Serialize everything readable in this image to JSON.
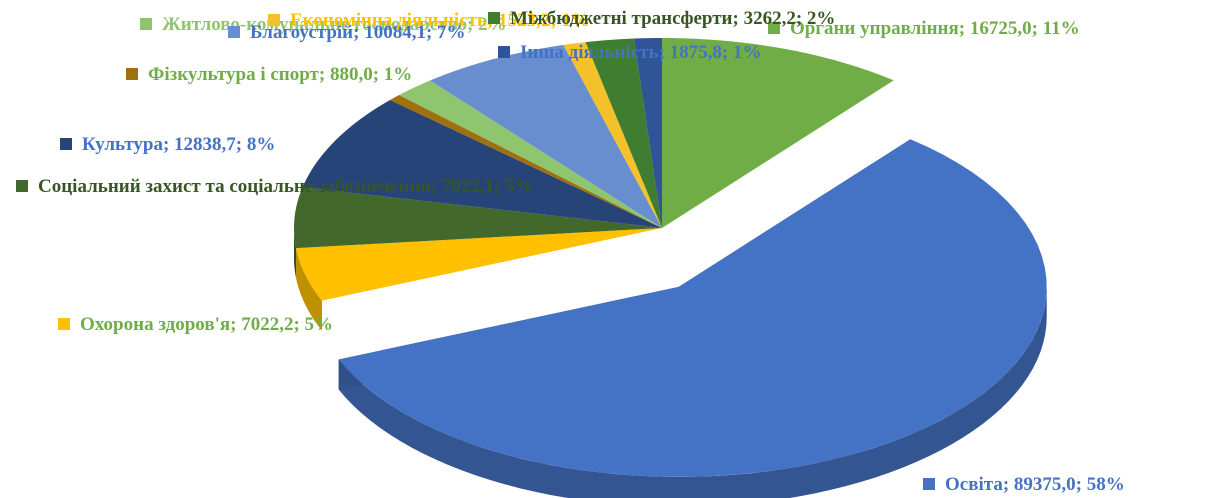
{
  "chart_data": {
    "type": "pie",
    "categories": [
      "Органи управління",
      "Освіта",
      "Охорона здоров'я",
      "Соціальний захист та соціальне забезпечення",
      "Культура",
      "Фізкультура і спорт",
      "Житлово-комунальне господарство",
      "Благоустрій",
      "Економічна діяльність",
      "Міжбюджетні трансферти",
      "Інша діяльність"
    ],
    "values": [
      16725.0,
      89375.0,
      7022.2,
      7922.1,
      12838.7,
      880.0,
      2800,
      10084.1,
      1523.2,
      3262.2,
      1875.8
    ],
    "value_labels": [
      "16725,0",
      "89375,0",
      "7022,2",
      "7922,1",
      "12838,7",
      "880,0",
      null,
      "10084,1",
      "1523,2",
      "3262,2",
      "1875,8"
    ],
    "percent_labels": [
      "11%",
      "58%",
      "5%",
      "5%",
      "8%",
      "1%",
      "2%",
      "7%",
      "1%",
      "2%",
      "1%"
    ],
    "colors": [
      "#70ad47",
      "#4472c4",
      "#ffc000",
      "#43682b",
      "#264478",
      "#9e7010",
      "#8fc56e",
      "#698ed0",
      "#f5c12b",
      "#3f7d30",
      "#2f5597"
    ],
    "exploded": [
      1
    ]
  }
}
